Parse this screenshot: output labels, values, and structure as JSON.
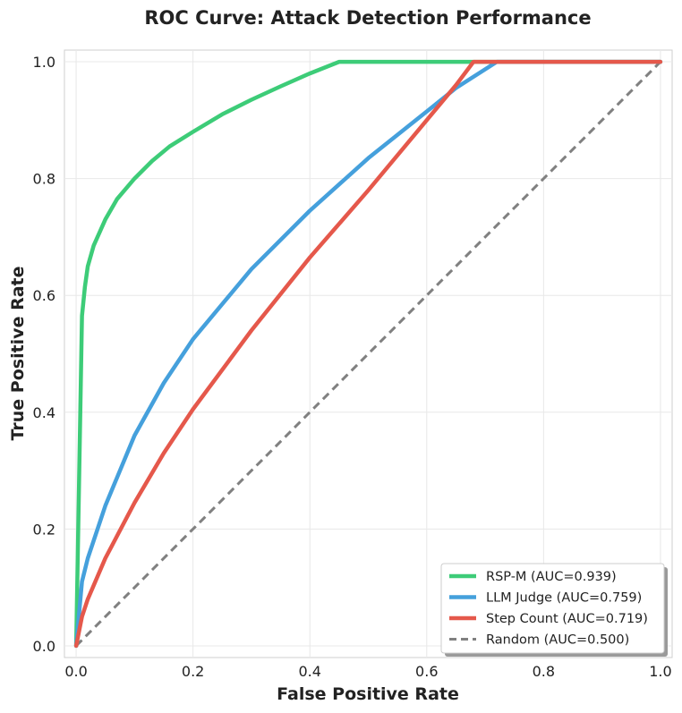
{
  "chart_data": {
    "type": "line",
    "title": "ROC Curve: Attack Detection Performance",
    "xlabel": "False Positive Rate",
    "ylabel": "True Positive Rate",
    "xlim": [
      -0.02,
      1.02
    ],
    "ylim": [
      -0.02,
      1.02
    ],
    "xticks": [
      0.0,
      0.2,
      0.4,
      0.6,
      0.8,
      1.0
    ],
    "yticks": [
      0.0,
      0.2,
      0.4,
      0.6,
      0.8,
      1.0
    ],
    "xtick_labels": [
      "0.0",
      "0.2",
      "0.4",
      "0.6",
      "0.8",
      "1.0"
    ],
    "ytick_labels": [
      "0.0",
      "0.2",
      "0.4",
      "0.6",
      "0.8",
      "1.0"
    ],
    "grid": true,
    "legend_position": "bottom-right",
    "series": [
      {
        "name": "RSP-M",
        "legend_label": "RSP-M (AUC=0.939)",
        "auc": 0.939,
        "color": "#3dcc78",
        "style": "solid",
        "x": [
          0.0,
          0.01,
          0.015,
          0.02,
          0.03,
          0.05,
          0.07,
          0.1,
          0.13,
          0.16,
          0.2,
          0.25,
          0.3,
          0.35,
          0.4,
          0.45,
          0.5,
          0.6,
          0.7,
          0.8,
          0.9,
          1.0
        ],
        "y": [
          0.0,
          0.565,
          0.615,
          0.65,
          0.685,
          0.73,
          0.765,
          0.8,
          0.83,
          0.855,
          0.88,
          0.91,
          0.935,
          0.958,
          0.98,
          1.0,
          1.0,
          1.0,
          1.0,
          1.0,
          1.0,
          1.0
        ]
      },
      {
        "name": "LLM Judge",
        "legend_label": "LLM Judge (AUC=0.759)",
        "auc": 0.759,
        "color": "#45a0dc",
        "style": "solid",
        "x": [
          0.0,
          0.01,
          0.02,
          0.05,
          0.1,
          0.15,
          0.2,
          0.3,
          0.4,
          0.5,
          0.6,
          0.65,
          0.72,
          0.8,
          0.9,
          1.0
        ],
        "y": [
          0.0,
          0.11,
          0.15,
          0.24,
          0.36,
          0.45,
          0.525,
          0.645,
          0.745,
          0.835,
          0.915,
          0.955,
          1.0,
          1.0,
          1.0,
          1.0
        ]
      },
      {
        "name": "Step Count",
        "legend_label": "Step Count (AUC=0.719)",
        "auc": 0.719,
        "color": "#e5584b",
        "style": "solid",
        "x": [
          0.0,
          0.01,
          0.02,
          0.05,
          0.1,
          0.15,
          0.2,
          0.3,
          0.4,
          0.5,
          0.6,
          0.65,
          0.68,
          0.7,
          0.8,
          0.9,
          1.0
        ],
        "y": [
          0.0,
          0.05,
          0.08,
          0.15,
          0.245,
          0.33,
          0.405,
          0.54,
          0.665,
          0.78,
          0.9,
          0.96,
          1.0,
          1.0,
          1.0,
          1.0,
          1.0
        ]
      },
      {
        "name": "Random",
        "legend_label": "Random (AUC=0.500)",
        "auc": 0.5,
        "color": "#808080",
        "style": "dashed",
        "x": [
          0.0,
          1.0
        ],
        "y": [
          0.0,
          1.0
        ]
      }
    ]
  }
}
